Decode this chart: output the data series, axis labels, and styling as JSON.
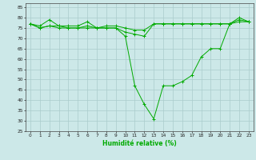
{
  "title": "",
  "xlabel": "Humidité relative (%)",
  "ylabel": "",
  "background_color": "#cce8e8",
  "grid_color": "#aacccc",
  "line_color": "#00aa00",
  "marker_color": "#00aa00",
  "xlim": [
    -0.5,
    23.5
  ],
  "ylim": [
    25,
    87
  ],
  "yticks": [
    25,
    30,
    35,
    40,
    45,
    50,
    55,
    60,
    65,
    70,
    75,
    80,
    85
  ],
  "xticks": [
    0,
    1,
    2,
    3,
    4,
    5,
    6,
    7,
    8,
    9,
    10,
    11,
    12,
    13,
    14,
    15,
    16,
    17,
    18,
    19,
    20,
    21,
    22,
    23
  ],
  "series": [
    [
      77,
      75,
      76,
      76,
      75,
      75,
      75,
      75,
      75,
      75,
      71,
      47,
      38,
      31,
      47,
      47,
      49,
      52,
      61,
      65,
      65,
      77,
      80,
      78
    ],
    [
      77,
      76,
      79,
      76,
      76,
      76,
      78,
      75,
      76,
      76,
      75,
      74,
      74,
      77,
      77,
      77,
      77,
      77,
      77,
      77,
      77,
      77,
      79,
      78
    ],
    [
      77,
      75,
      76,
      75,
      75,
      75,
      76,
      75,
      75,
      75,
      73,
      72,
      71,
      77,
      77,
      77,
      77,
      77,
      77,
      77,
      77,
      77,
      78,
      78
    ]
  ]
}
